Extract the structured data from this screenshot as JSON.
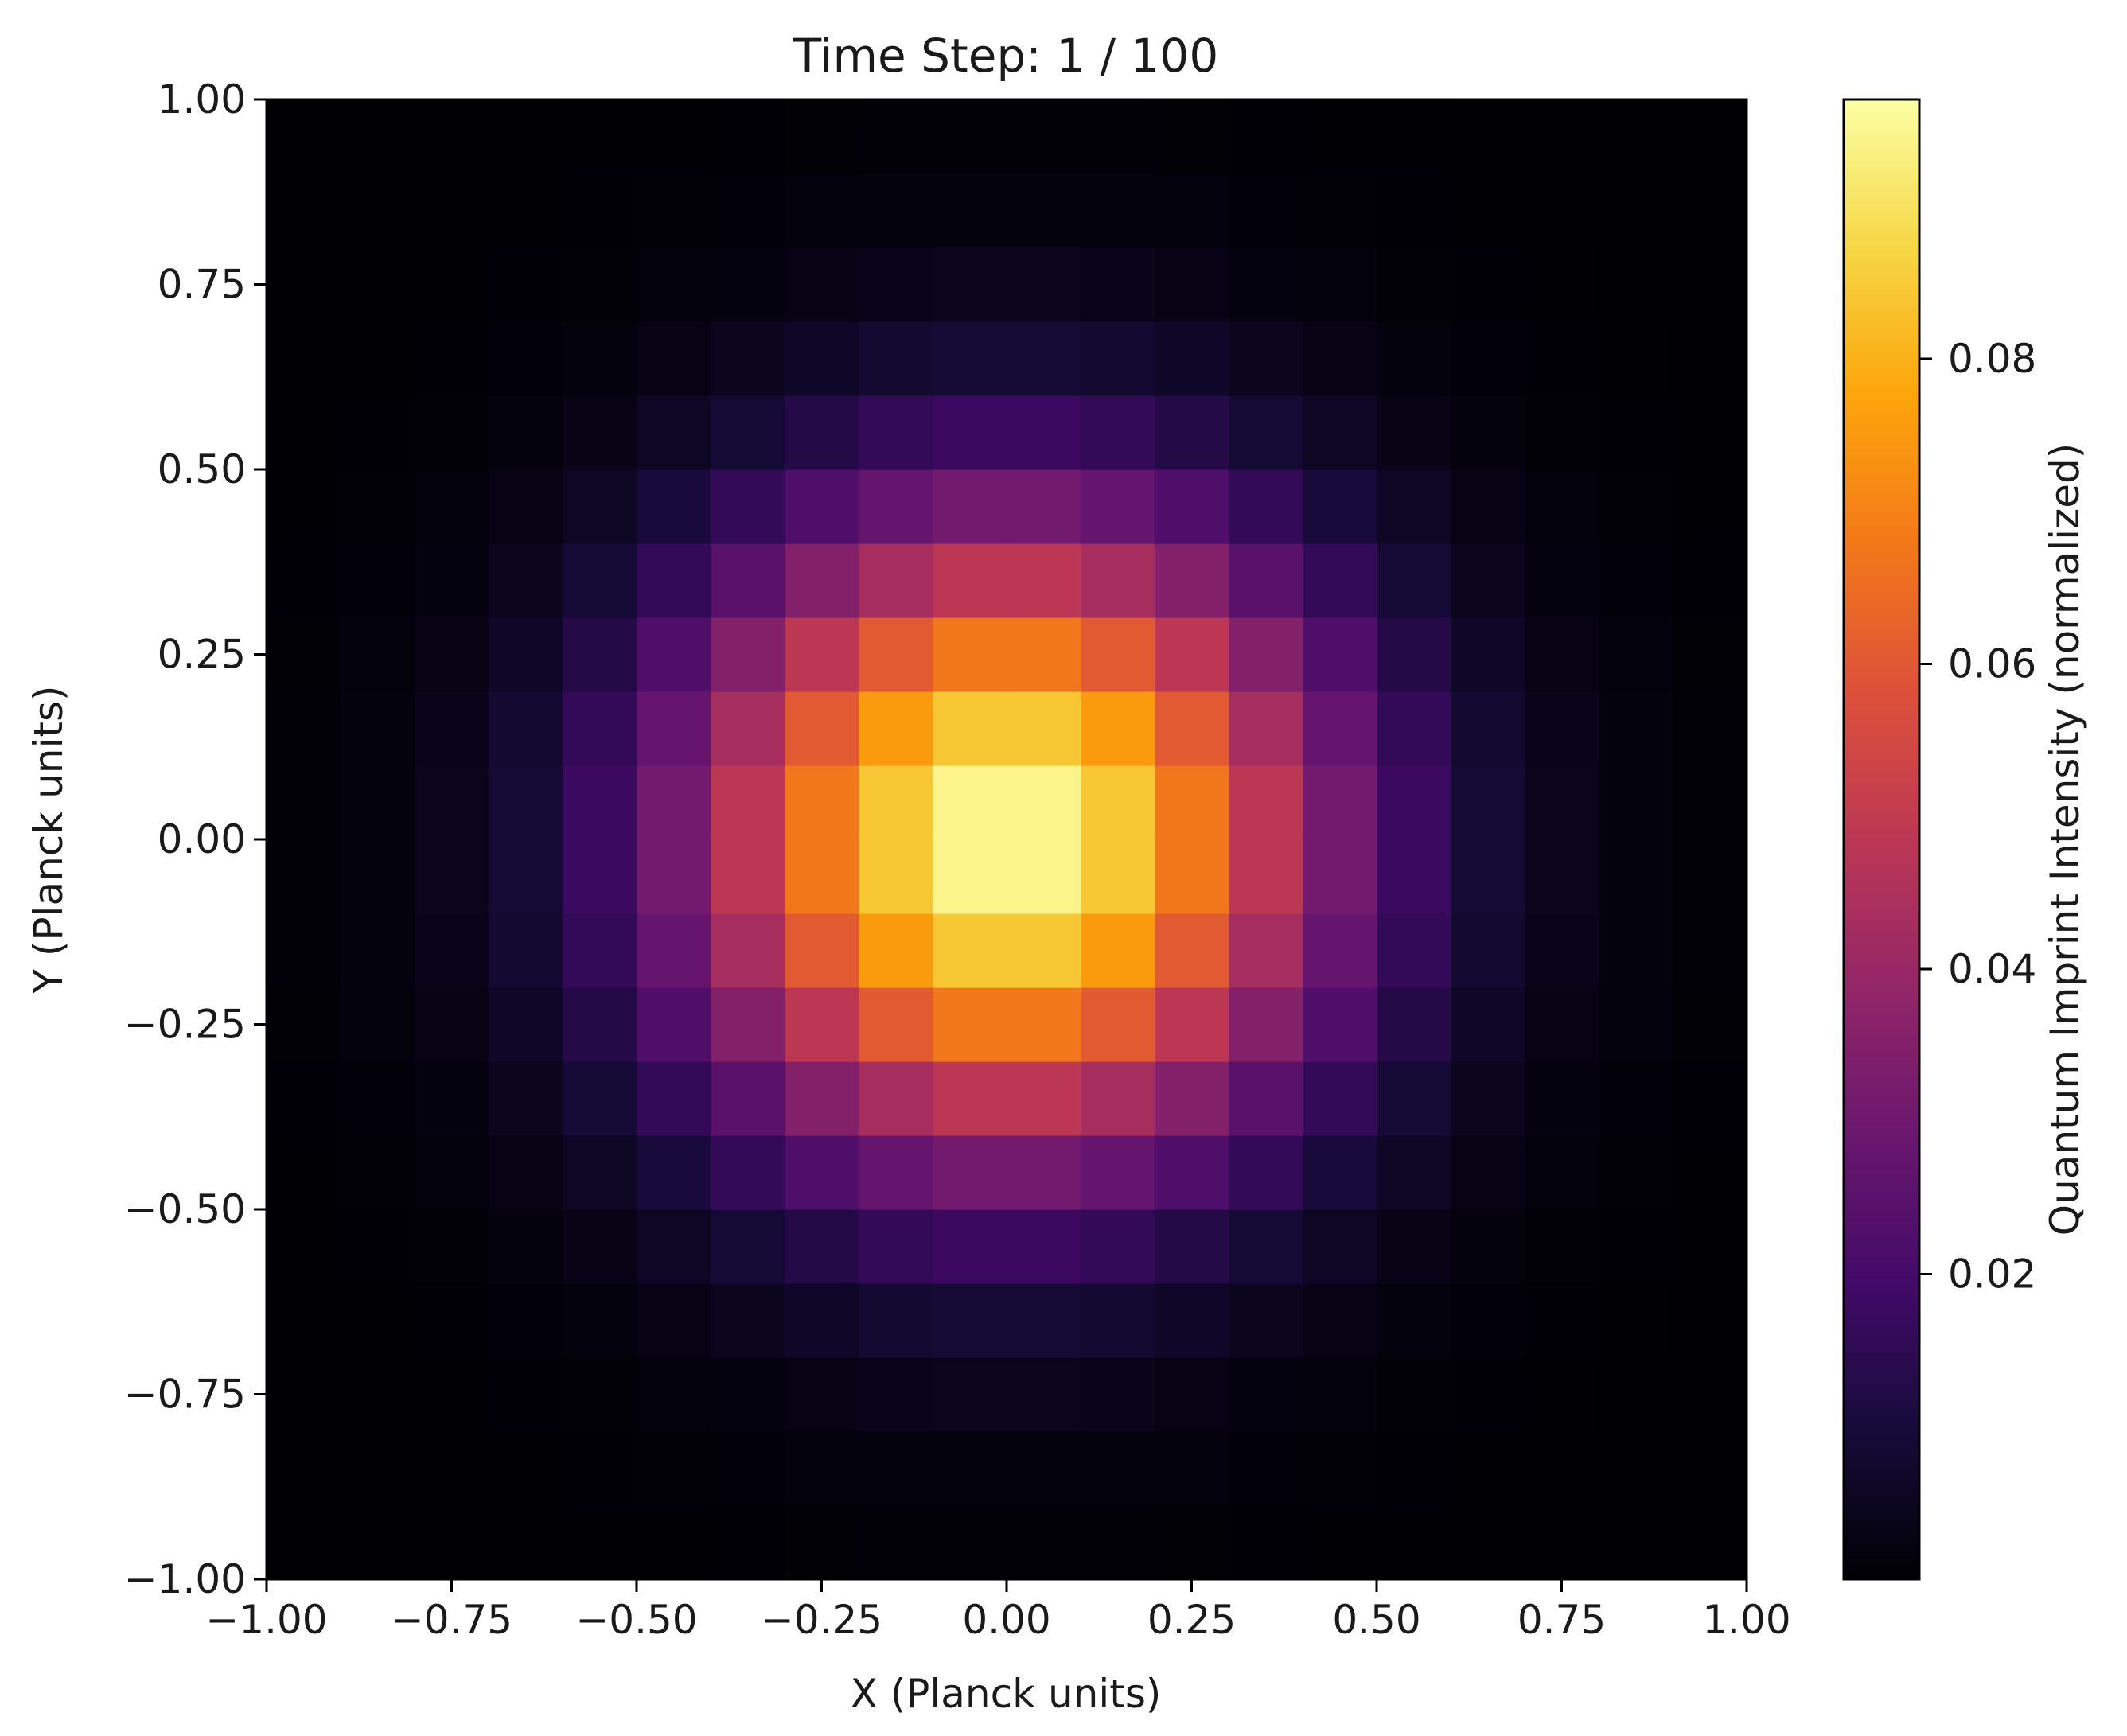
{
  "chart_data": {
    "type": "heatmap",
    "title": "Time Step: 1 / 100",
    "xlabel": "X (Planck units)",
    "ylabel": "Y (Planck units)",
    "colorbar_label": "Quantum Imprint Intensity (normalized)",
    "colormap": "inferno",
    "xlim": [
      -1.0,
      1.0
    ],
    "ylim": [
      -1.0,
      1.0
    ],
    "xticks": [
      "−1.00",
      "−0.75",
      "−0.50",
      "−0.25",
      "0.00",
      "0.25",
      "0.50",
      "0.75",
      "1.00"
    ],
    "yticks": [
      "1.00",
      "0.75",
      "0.50",
      "0.25",
      "0.00",
      "−0.25",
      "−0.50",
      "−0.75",
      "−1.00"
    ],
    "colorbar_ticks": [
      "0.08",
      "0.06",
      "0.04",
      "0.02"
    ],
    "colorbar_range": [
      0.0,
      0.097
    ],
    "grid": {
      "nx": 20,
      "ny": 20,
      "center": [
        0.0,
        0.0
      ],
      "sigma": 0.3,
      "peak_intensity": 0.097,
      "description_function": "gaussian"
    }
  }
}
